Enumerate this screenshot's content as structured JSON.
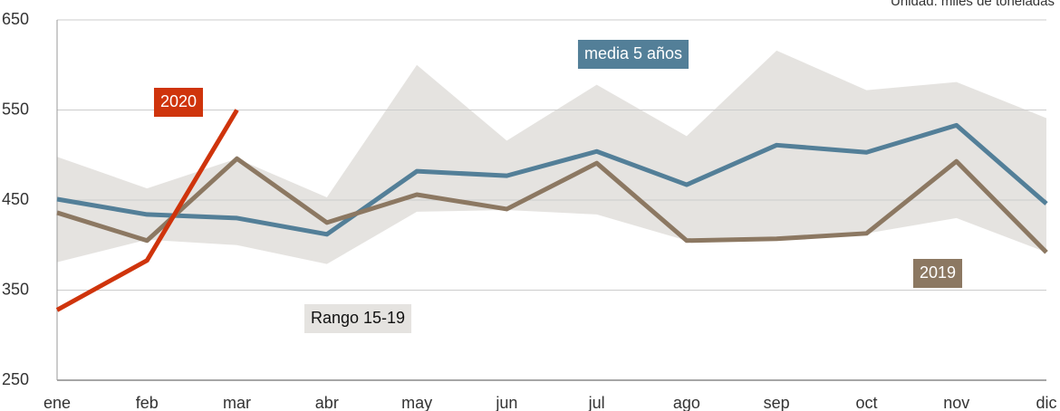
{
  "chart_data": {
    "type": "line",
    "note": "Unidad: miles de toneladas",
    "categories": [
      "ene",
      "feb",
      "mar",
      "abr",
      "may",
      "jun",
      "jul",
      "ago",
      "sep",
      "oct",
      "nov",
      "dic"
    ],
    "ylim": [
      250,
      650
    ],
    "yticks": [
      250,
      350,
      450,
      550,
      650
    ],
    "grid": true,
    "band": {
      "name": "Rango 15-19",
      "color": "#e5e3e0",
      "lower": [
        381,
        406,
        400,
        379,
        437,
        439,
        434,
        405,
        407,
        413,
        430,
        392
      ],
      "upper": [
        498,
        463,
        496,
        453,
        600,
        516,
        578,
        521,
        616,
        572,
        581,
        541
      ]
    },
    "series": [
      {
        "name": "media 5 años",
        "color": "#537f98",
        "values": [
          451,
          434,
          430,
          412,
          482,
          477,
          504,
          467,
          511,
          503,
          533,
          446
        ]
      },
      {
        "name": "2019",
        "color": "#8c7862",
        "values": [
          436,
          405,
          496,
          425,
          456,
          440,
          491,
          405,
          407,
          413,
          493,
          392
        ]
      },
      {
        "name": "2020",
        "color": "#cf340c",
        "values": [
          328,
          383,
          550,
          null,
          null,
          null,
          null,
          null,
          null,
          null,
          null,
          null
        ]
      }
    ]
  }
}
